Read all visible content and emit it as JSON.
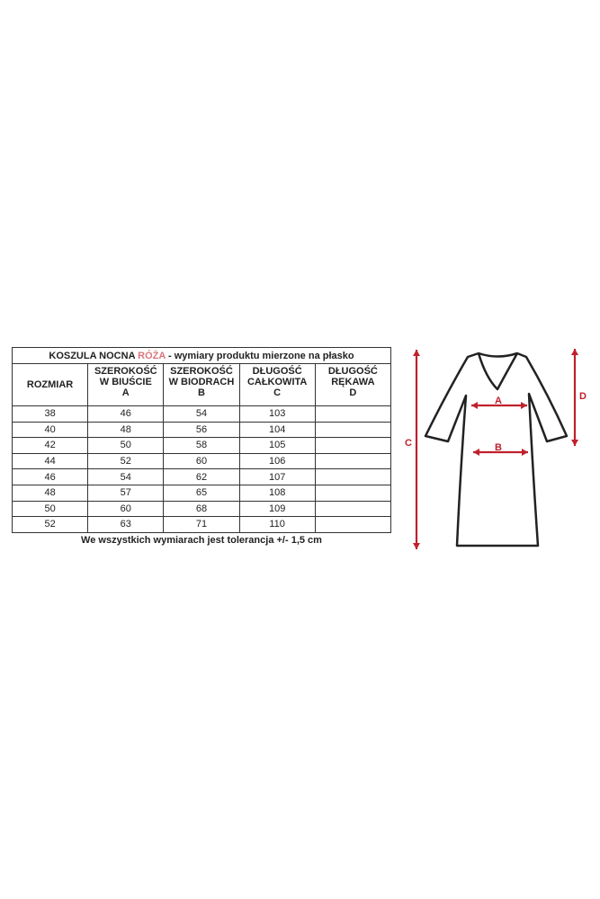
{
  "title": {
    "prefix": "KOSZULA NOCNA ",
    "highlight": "RÓŻA",
    "suffix": " - wymiary produktu mierzone na płasko",
    "highlight_color": "#d9767f"
  },
  "headers": [
    {
      "l1": "ROZMIAR",
      "l2": "",
      "l3": ""
    },
    {
      "l1": "SZEROKOŚĆ",
      "l2": "W BIUŚCIE",
      "l3": "A"
    },
    {
      "l1": "SZEROKOŚĆ",
      "l2": "W BIODRACH",
      "l3": "B"
    },
    {
      "l1": "DŁUGOŚĆ",
      "l2": "CAŁKOWITA",
      "l3": "C"
    },
    {
      "l1": "DŁUGOŚĆ",
      "l2": "RĘKAWA",
      "l3": "D"
    }
  ],
  "rows": [
    [
      "38",
      "46",
      "54",
      "103",
      ""
    ],
    [
      "40",
      "48",
      "56",
      "104",
      ""
    ],
    [
      "42",
      "50",
      "58",
      "105",
      ""
    ],
    [
      "44",
      "52",
      "60",
      "106",
      ""
    ],
    [
      "46",
      "54",
      "62",
      "107",
      ""
    ],
    [
      "48",
      "57",
      "65",
      "108",
      ""
    ],
    [
      "50",
      "60",
      "68",
      "109",
      ""
    ],
    [
      "52",
      "63",
      "71",
      "110",
      ""
    ]
  ],
  "note": "We wszystkich wymiarach jest tolerancja +/- 1,5 cm",
  "diagram": {
    "labels": {
      "a": "A",
      "b": "B",
      "c": "C",
      "d": "D"
    },
    "arrow_color": "#c0202c"
  }
}
